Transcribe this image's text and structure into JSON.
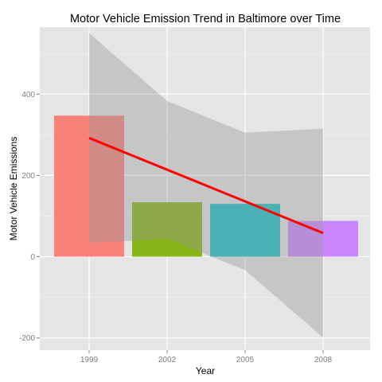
{
  "chart_data": {
    "type": "bar",
    "title": "Motor Vehicle Emission Trend in Baltimore over Time",
    "xlabel": "Year",
    "ylabel": "Motor Vehicle Emissions",
    "categories": [
      "1999",
      "2002",
      "2005",
      "2008"
    ],
    "values": [
      347,
      134,
      130,
      88
    ],
    "bar_colors": [
      "#F8766D",
      "#7CAE00",
      "#00BFC4",
      "#C77CFF"
    ],
    "bar_opacity": 0.9,
    "ylim": [
      -230,
      565
    ],
    "y_ticks": [
      -200,
      0,
      200,
      400
    ],
    "grid": true,
    "legend": "none",
    "trend_line": {
      "type": "linear fit with confidence band",
      "color": "#FF0000",
      "x": [
        "1999",
        "2002",
        "2005",
        "2008"
      ],
      "fit": [
        292,
        214,
        136,
        58
      ],
      "band_upper": [
        550,
        383,
        305,
        315
      ],
      "band_lower": [
        34,
        44,
        -33,
        -199
      ]
    },
    "colors": {
      "panel_background": "#E5E5E5",
      "grid_major": "#FFFFFF",
      "grid_minor": "#F2F2F2",
      "band_fill": "#999999"
    }
  }
}
